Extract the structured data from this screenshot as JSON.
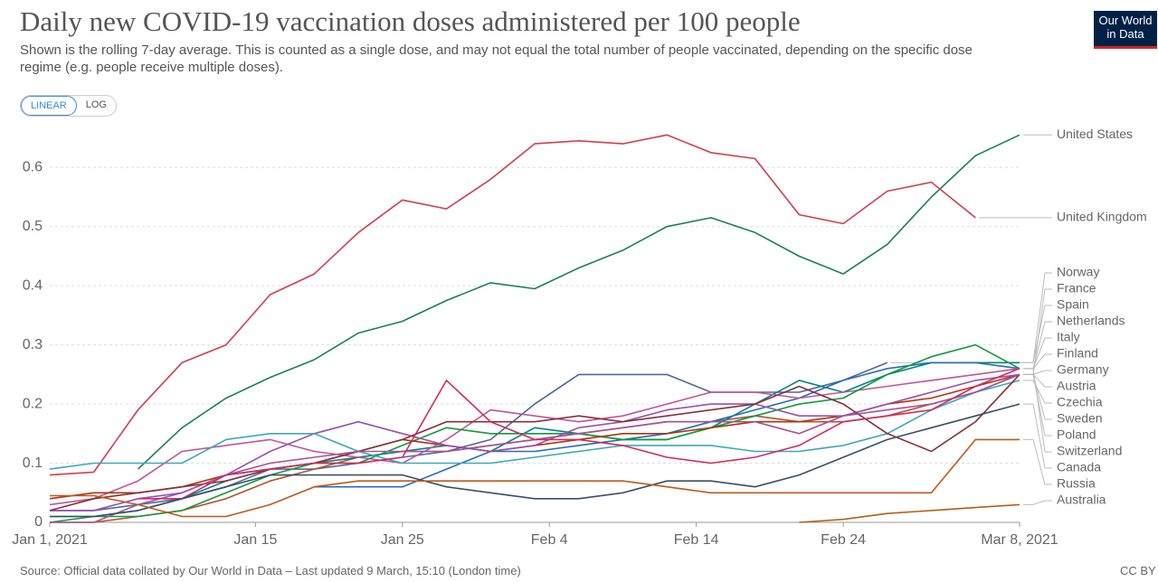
{
  "chart_data": {
    "type": "line",
    "title": "Daily new COVID-19 vaccination doses administered per 100 people",
    "subtitle": "Shown is the rolling 7-day average. This is counted as a single dose, and may not equal the total number of people vaccinated, depending on the specific dose regime (e.g. people receive multiple doses).",
    "logo": "Our World in Data",
    "controls": [
      "LINEAR",
      "LOG"
    ],
    "source": "Source: Official data collated by Our World in Data – Last updated 9 March, 15:10 (London time)",
    "license": "CC BY",
    "x": [
      "2021-01-01",
      "2021-01-04",
      "2021-01-07",
      "2021-01-10",
      "2021-01-13",
      "2021-01-16",
      "2021-01-19",
      "2021-01-22",
      "2021-01-25",
      "2021-01-28",
      "2021-01-31",
      "2021-02-03",
      "2021-02-06",
      "2021-02-09",
      "2021-02-12",
      "2021-02-15",
      "2021-02-18",
      "2021-02-21",
      "2021-02-24",
      "2021-02-27",
      "2021-03-02",
      "2021-03-05",
      "2021-03-08"
    ],
    "xlim": [
      "2021-01-01",
      "2021-03-08"
    ],
    "xticks": [
      {
        "value": "2021-01-01",
        "label": "Jan 1, 2021"
      },
      {
        "value": "2021-01-15",
        "label": "Jan 15"
      },
      {
        "value": "2021-01-25",
        "label": "Jan 25"
      },
      {
        "value": "2021-02-04",
        "label": "Feb 4"
      },
      {
        "value": "2021-02-14",
        "label": "Feb 14"
      },
      {
        "value": "2021-02-24",
        "label": "Feb 24"
      },
      {
        "value": "2021-03-08",
        "label": "Mar 8, 2021"
      }
    ],
    "ylim": [
      0,
      0.66
    ],
    "yticks": [
      0,
      0.1,
      0.2,
      0.3,
      0.4,
      0.5,
      0.6
    ],
    "grid": true,
    "series": [
      {
        "name": "United States",
        "color": "#18805e",
        "values": [
          null,
          null,
          0.09,
          0.16,
          0.21,
          0.245,
          0.275,
          0.32,
          0.34,
          0.375,
          0.405,
          0.395,
          0.43,
          0.46,
          0.5,
          0.515,
          0.49,
          0.45,
          0.42,
          0.47,
          0.55,
          0.62,
          0.655
        ]
      },
      {
        "name": "United Kingdom",
        "color": "#d73c50",
        "values": [
          0.08,
          0.085,
          0.19,
          0.27,
          0.3,
          0.385,
          0.42,
          0.49,
          0.545,
          0.53,
          0.58,
          0.64,
          0.645,
          0.64,
          0.655,
          0.625,
          0.615,
          0.52,
          0.505,
          0.56,
          0.575,
          0.515,
          null
        ]
      },
      {
        "name": "Norway",
        "color": "#4c6a9c",
        "values": [
          0.02,
          0.02,
          0.03,
          0.04,
          0.06,
          0.09,
          0.09,
          0.1,
          0.11,
          0.12,
          0.14,
          0.2,
          0.25,
          0.25,
          0.25,
          0.22,
          0.22,
          0.22,
          0.24,
          0.27,
          null,
          null,
          null
        ]
      },
      {
        "name": "France",
        "color": "#b5542c",
        "values": [
          0,
          0,
          0.01,
          0.02,
          0.04,
          0.07,
          0.09,
          0.11,
          0.12,
          0.12,
          0.13,
          0.14,
          0.15,
          0.16,
          0.17,
          0.17,
          0.18,
          0.17,
          0.17,
          0.18,
          0.2,
          0.22,
          0.25
        ]
      },
      {
        "name": "Spain",
        "color": "#00847e",
        "values": [
          0.01,
          0.01,
          0.02,
          0.04,
          0.07,
          0.09,
          0.1,
          0.11,
          0.12,
          0.13,
          0.12,
          0.16,
          0.15,
          0.14,
          0.14,
          0.16,
          0.2,
          0.24,
          0.22,
          0.25,
          0.27,
          0.27,
          0.27
        ]
      },
      {
        "name": "Netherlands",
        "color": "#286bbb",
        "values": [
          null,
          null,
          null,
          null,
          null,
          null,
          0.06,
          0.06,
          0.06,
          0.09,
          0.12,
          0.12,
          0.13,
          0.14,
          0.15,
          0.17,
          0.19,
          0.21,
          0.24,
          0.26,
          0.27,
          0.27,
          0.26
        ]
      },
      {
        "name": "Italy",
        "color": "#c4529e",
        "values": [
          0.03,
          0.04,
          0.07,
          0.12,
          0.13,
          0.14,
          0.12,
          0.11,
          0.1,
          0.14,
          0.19,
          0.18,
          0.17,
          0.18,
          0.2,
          0.22,
          0.22,
          0.21,
          0.22,
          0.23,
          0.24,
          0.25,
          0.26
        ]
      },
      {
        "name": "Finland",
        "color": "#109b3c",
        "values": [
          0,
          0.01,
          0.01,
          0.02,
          0.05,
          0.08,
          0.1,
          0.1,
          0.13,
          0.16,
          0.15,
          0.15,
          0.15,
          0.14,
          0.14,
          0.16,
          0.18,
          0.2,
          0.21,
          0.25,
          0.28,
          0.3,
          0.26
        ]
      },
      {
        "name": "Germany",
        "color": "#b13507",
        "values": [
          0.04,
          0.05,
          0.05,
          0.06,
          0.08,
          0.09,
          0.1,
          0.12,
          0.14,
          0.13,
          0.12,
          0.13,
          0.14,
          0.15,
          0.15,
          0.16,
          0.17,
          0.17,
          0.18,
          0.2,
          0.21,
          0.23,
          0.25
        ]
      },
      {
        "name": "Austria",
        "color": "#9a4fb0",
        "values": [
          0.02,
          0.02,
          0.04,
          0.05,
          0.08,
          0.12,
          0.15,
          0.17,
          0.15,
          0.13,
          0.12,
          0.13,
          0.16,
          0.17,
          0.19,
          0.2,
          0.2,
          0.18,
          0.18,
          0.2,
          0.22,
          0.24,
          0.25
        ]
      },
      {
        "name": "Czechia",
        "color": "#38aaba",
        "values": [
          0.09,
          0.1,
          0.1,
          0.1,
          0.14,
          0.15,
          0.15,
          0.12,
          0.1,
          0.1,
          0.1,
          0.11,
          0.12,
          0.13,
          0.13,
          0.13,
          0.12,
          0.12,
          0.13,
          0.15,
          0.19,
          0.22,
          0.24
        ]
      },
      {
        "name": "Sweden",
        "color": "#883039",
        "values": [
          0.02,
          0.04,
          0.05,
          0.06,
          0.07,
          0.09,
          0.1,
          0.12,
          0.14,
          0.17,
          0.17,
          0.17,
          0.18,
          0.17,
          0.18,
          0.19,
          0.2,
          0.23,
          0.2,
          0.15,
          0.12,
          0.17,
          0.25
        ]
      },
      {
        "name": "Poland",
        "color": "#a2559c",
        "values": [
          0,
          0,
          0.03,
          0.05,
          0.08,
          0.1,
          0.11,
          0.12,
          0.12,
          0.12,
          0.13,
          0.14,
          0.15,
          0.16,
          0.17,
          0.17,
          0.17,
          0.15,
          0.18,
          0.19,
          0.2,
          0.22,
          0.25
        ]
      },
      {
        "name": "Switzerland",
        "color": "#d3295f",
        "values": [
          null,
          null,
          0.04,
          0.04,
          0.08,
          0.09,
          0.1,
          0.1,
          0.11,
          0.24,
          0.17,
          0.14,
          0.14,
          0.13,
          0.11,
          0.1,
          0.11,
          0.13,
          0.17,
          0.18,
          0.19,
          0.23,
          0.26
        ]
      },
      {
        "name": "Canada",
        "color": "#3c4e66",
        "values": [
          0.01,
          0.01,
          0.02,
          0.04,
          0.06,
          0.08,
          0.08,
          0.08,
          0.08,
          0.06,
          0.05,
          0.04,
          0.04,
          0.05,
          0.07,
          0.07,
          0.06,
          0.08,
          0.11,
          0.14,
          0.16,
          0.18,
          0.2
        ]
      },
      {
        "name": "Russia",
        "color": "#c05917",
        "values": [
          0.045,
          0.045,
          0.03,
          0.01,
          0.01,
          0.03,
          0.06,
          0.07,
          0.07,
          0.07,
          0.07,
          0.07,
          0.07,
          0.07,
          0.06,
          0.05,
          0.05,
          0.05,
          0.05,
          0.05,
          0.05,
          0.14,
          0.14
        ]
      },
      {
        "name": "Australia",
        "color": "#b16214",
        "values": [
          null,
          null,
          null,
          null,
          null,
          null,
          null,
          null,
          null,
          null,
          null,
          null,
          null,
          null,
          null,
          null,
          null,
          0,
          0.005,
          0.015,
          0.02,
          0.025,
          0.03
        ]
      }
    ]
  }
}
